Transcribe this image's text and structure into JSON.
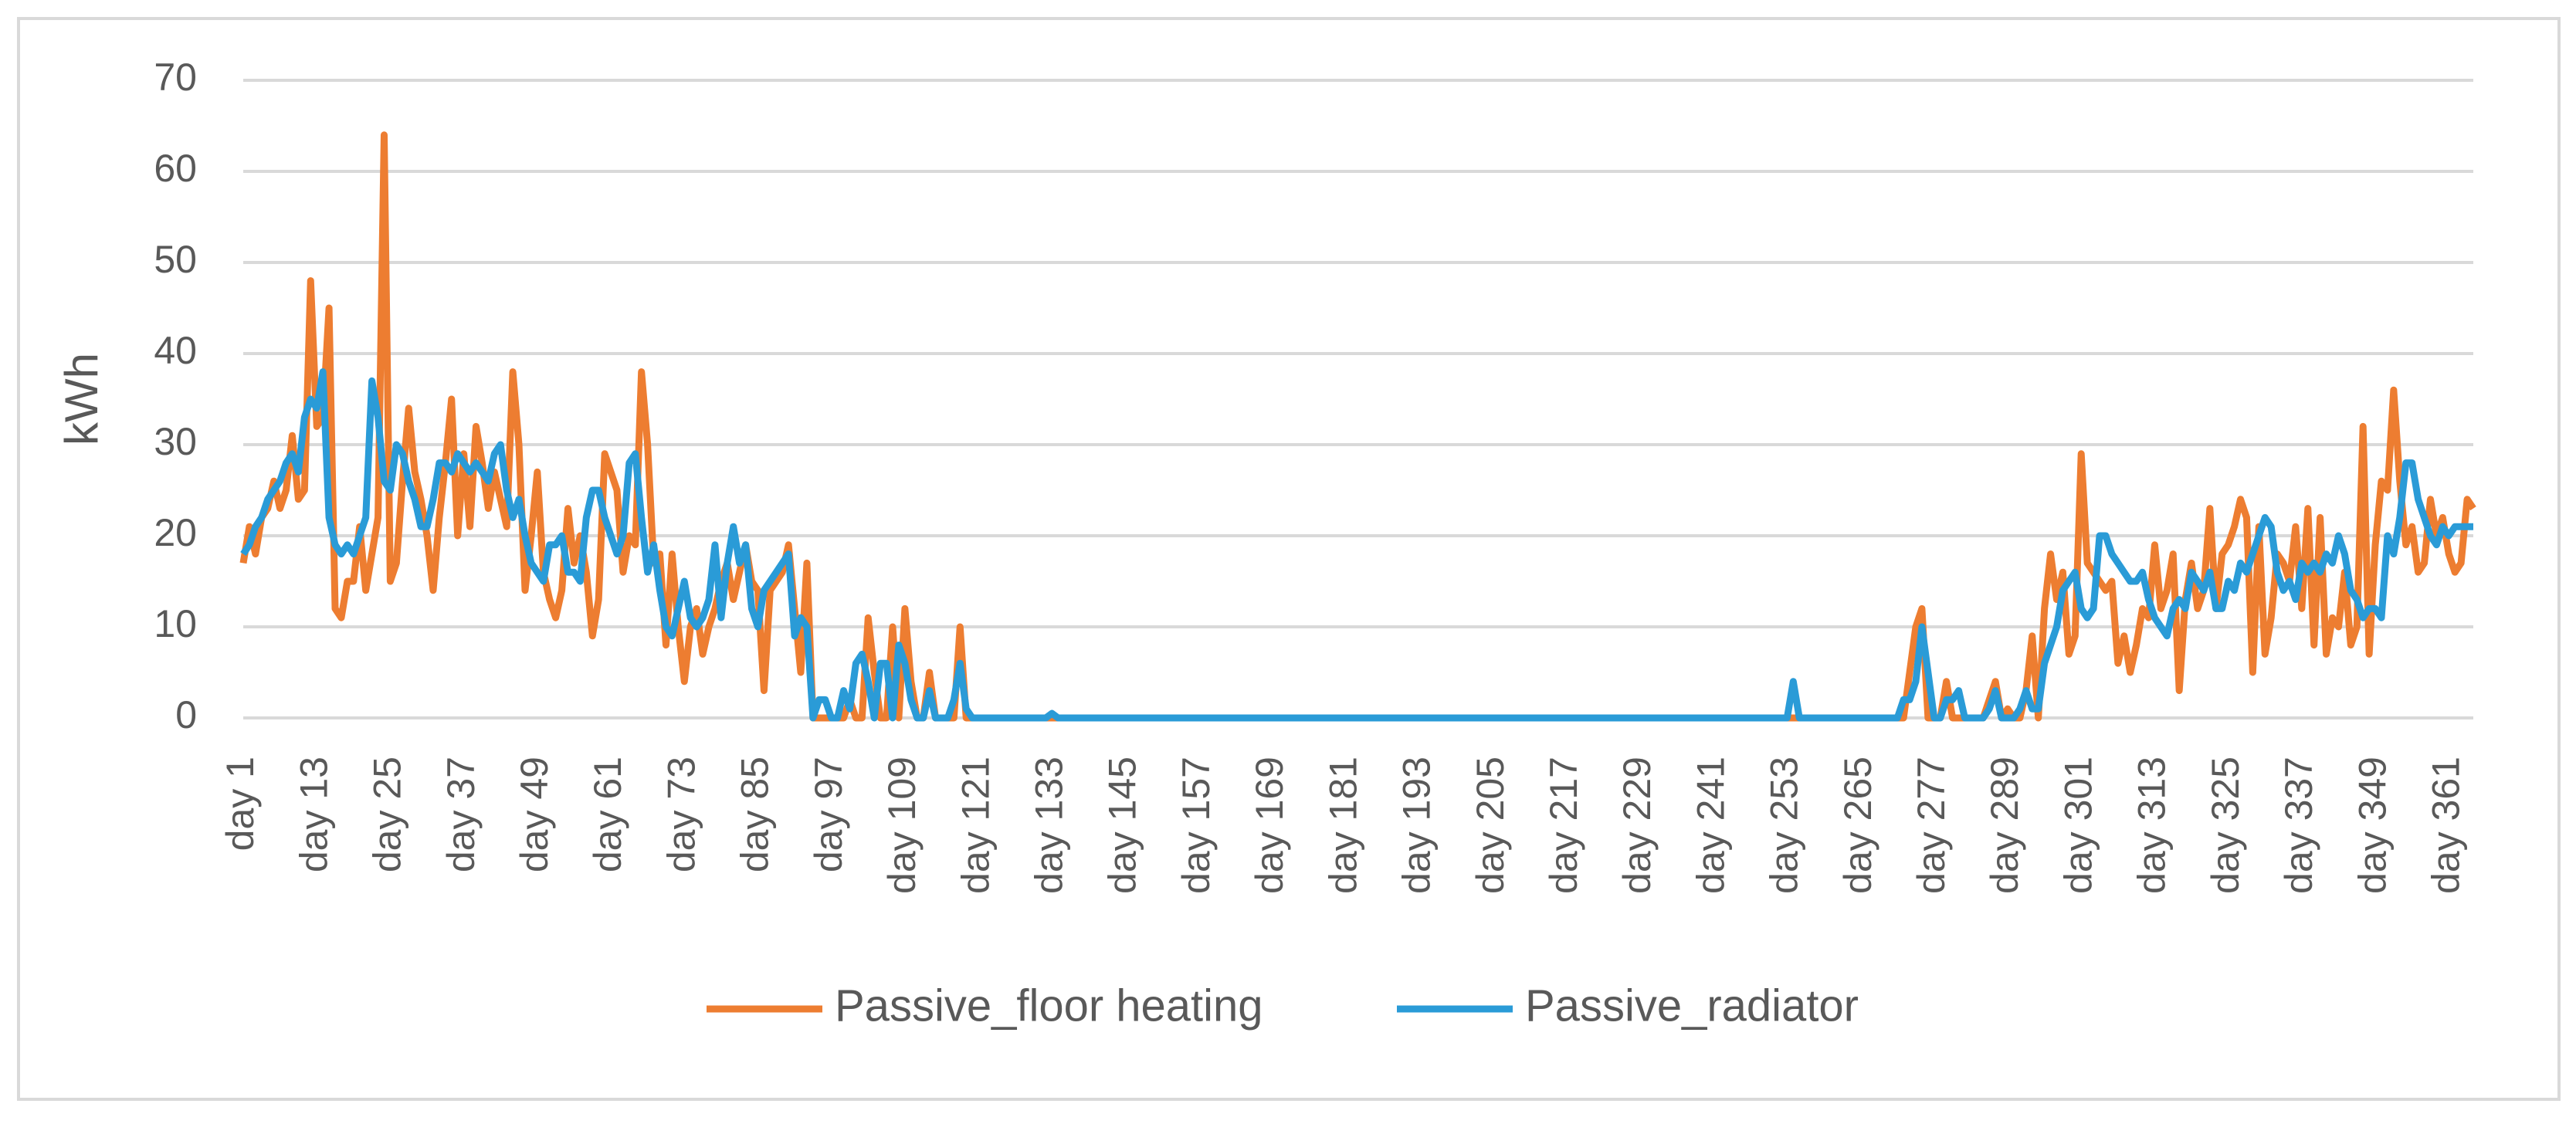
{
  "chart_data": {
    "type": "line",
    "y_label": "kWh",
    "categories": [
      "day 1",
      null,
      null,
      null,
      null,
      null,
      null,
      null,
      null,
      null,
      null,
      null,
      "day 13",
      null,
      null,
      null,
      null,
      null,
      null,
      null,
      null,
      null,
      null,
      null,
      "day 25",
      null,
      null,
      null,
      null,
      null,
      null,
      null,
      null,
      null,
      null,
      null,
      "day 37",
      null,
      null,
      null,
      null,
      null,
      null,
      null,
      null,
      null,
      null,
      null,
      "day 49",
      null,
      null,
      null,
      null,
      null,
      null,
      null,
      null,
      null,
      null,
      null,
      "day 61",
      null,
      null,
      null,
      null,
      null,
      null,
      null,
      null,
      null,
      null,
      null,
      "day 73",
      null,
      null,
      null,
      null,
      null,
      null,
      null,
      null,
      null,
      null,
      null,
      "day 85",
      null,
      null,
      null,
      null,
      null,
      null,
      null,
      null,
      null,
      null,
      null,
      "day 97",
      null,
      null,
      null,
      null,
      null,
      null,
      null,
      null,
      null,
      null,
      null,
      "day 109",
      null,
      null,
      null,
      null,
      null,
      null,
      null,
      null,
      null,
      null,
      null,
      "day 121",
      null,
      null,
      null,
      null,
      null,
      null,
      null,
      null,
      null,
      null,
      null,
      "day 133",
      null,
      null,
      null,
      null,
      null,
      null,
      null,
      null,
      null,
      null,
      null,
      "day 145",
      null,
      null,
      null,
      null,
      null,
      null,
      null,
      null,
      null,
      null,
      null,
      "day 157",
      null,
      null,
      null,
      null,
      null,
      null,
      null,
      null,
      null,
      null,
      null,
      "day 169",
      null,
      null,
      null,
      null,
      null,
      null,
      null,
      null,
      null,
      null,
      null,
      "day 181",
      null,
      null,
      null,
      null,
      null,
      null,
      null,
      null,
      null,
      null,
      null,
      "day 193",
      null,
      null,
      null,
      null,
      null,
      null,
      null,
      null,
      null,
      null,
      null,
      "day 205",
      null,
      null,
      null,
      null,
      null,
      null,
      null,
      null,
      null,
      null,
      null,
      "day 217",
      null,
      null,
      null,
      null,
      null,
      null,
      null,
      null,
      null,
      null,
      null,
      "day 229",
      null,
      null,
      null,
      null,
      null,
      null,
      null,
      null,
      null,
      null,
      null,
      "day 241",
      null,
      null,
      null,
      null,
      null,
      null,
      null,
      null,
      null,
      null,
      null,
      "day 253",
      null,
      null,
      null,
      null,
      null,
      null,
      null,
      null,
      null,
      null,
      null,
      "day 265",
      null,
      null,
      null,
      null,
      null,
      null,
      null,
      null,
      null,
      null,
      null,
      "day 277",
      null,
      null,
      null,
      null,
      null,
      null,
      null,
      null,
      null,
      null,
      null,
      "day 289",
      null,
      null,
      null,
      null,
      null,
      null,
      null,
      null,
      null,
      null,
      null,
      "day 301",
      null,
      null,
      null,
      null,
      null,
      null,
      null,
      null,
      null,
      null,
      null,
      "day 313",
      null,
      null,
      null,
      null,
      null,
      null,
      null,
      null,
      null,
      null,
      null,
      "day 325",
      null,
      null,
      null,
      null,
      null,
      null,
      null,
      null,
      null,
      null,
      null,
      "day 337",
      null,
      null,
      null,
      null,
      null,
      null,
      null,
      null,
      null,
      null,
      null,
      "day 349",
      null,
      null,
      null,
      null,
      null,
      null,
      null,
      null,
      null,
      null,
      null,
      "day 361",
      null,
      null,
      null,
      null
    ],
    "series": [
      {
        "name": "Passive_floor heating",
        "color": "#ed7d31",
        "values": [
          17,
          21,
          18,
          22,
          23,
          26,
          23,
          25,
          31,
          24,
          25,
          48,
          32,
          33,
          45,
          12,
          11,
          15,
          15,
          21,
          14,
          18,
          22,
          64,
          15,
          17,
          26,
          34,
          27,
          24,
          20,
          14,
          22,
          28,
          35,
          20,
          29,
          21,
          32,
          28,
          23,
          27,
          24,
          21,
          38,
          30,
          14,
          20,
          27,
          16,
          13,
          11,
          14,
          23,
          17,
          20,
          16,
          9,
          13,
          29,
          27,
          25,
          16,
          20,
          19,
          38,
          30,
          17,
          18,
          8,
          18,
          10,
          4,
          10,
          12,
          7,
          10,
          12,
          15,
          17,
          13,
          16,
          19,
          15,
          14,
          3,
          14,
          15,
          16,
          19,
          12,
          5,
          17,
          0,
          0,
          0,
          0,
          0,
          0,
          2,
          0,
          0,
          11,
          5,
          0,
          0,
          10,
          0,
          12,
          4,
          0,
          0,
          5,
          0,
          0,
          0,
          0,
          10,
          0,
          0,
          0,
          0,
          0,
          0,
          0,
          0,
          0,
          0,
          0,
          0,
          0,
          0,
          0,
          0,
          0,
          0,
          0,
          0,
          0,
          0,
          0,
          0,
          0,
          0,
          0,
          0,
          0,
          0,
          0,
          0,
          0,
          0,
          0,
          0,
          0,
          0,
          0,
          0,
          0,
          0,
          0,
          0,
          0,
          0,
          0,
          0,
          0,
          0,
          0,
          0,
          0,
          0,
          0,
          0,
          0,
          0,
          0,
          0,
          0,
          0,
          0,
          0,
          0,
          0,
          0,
          0,
          0,
          0,
          0,
          0,
          0,
          0,
          0,
          0,
          0,
          0,
          0,
          0,
          0,
          0,
          0,
          0,
          0,
          0,
          0,
          0,
          0,
          0,
          0,
          0,
          0,
          0,
          0,
          0,
          0,
          0,
          0,
          0,
          0,
          0,
          0,
          0,
          0,
          0,
          0,
          0,
          0,
          0,
          0,
          0,
          0,
          0,
          0,
          0,
          0,
          0,
          0,
          0,
          0,
          0,
          0,
          0,
          0,
          0,
          0,
          0,
          0,
          0,
          0,
          0,
          0,
          0,
          0,
          0,
          0,
          0,
          0,
          0,
          0,
          0,
          0,
          0,
          0,
          0,
          0,
          0,
          0,
          0,
          0,
          0,
          0,
          0,
          5,
          10,
          12,
          0,
          0,
          0,
          4,
          0,
          0,
          0,
          0,
          0,
          0,
          2,
          4,
          0,
          1,
          0,
          0,
          3,
          9,
          0,
          12,
          18,
          13,
          16,
          7,
          9,
          29,
          17,
          16,
          15,
          14,
          15,
          6,
          9,
          5,
          8,
          12,
          11,
          19,
          12,
          14,
          18,
          3,
          13,
          17,
          12,
          14,
          23,
          12,
          18,
          19,
          21,
          24,
          22,
          5,
          21,
          7,
          11,
          18,
          17,
          15,
          21,
          12,
          23,
          8,
          22,
          7,
          11,
          10,
          16,
          8,
          10,
          32,
          7,
          19,
          26,
          25,
          36,
          26,
          19,
          21,
          16,
          17,
          24,
          20,
          22,
          18,
          16,
          17,
          24,
          23
        ]
      },
      {
        "name": "Passive_radiator",
        "color": "#2a9bd7",
        "values": [
          18,
          19,
          21,
          22,
          24,
          25,
          26,
          28,
          29,
          27,
          33,
          35,
          34,
          38,
          22,
          19,
          18,
          19,
          18,
          20,
          22,
          37,
          33,
          26,
          25,
          30,
          29,
          26,
          24,
          21,
          21,
          24,
          28,
          28,
          27,
          29,
          28,
          27,
          28,
          27,
          26,
          29,
          30,
          25,
          22,
          24,
          20,
          17,
          16,
          15,
          19,
          19,
          20,
          16,
          16,
          15,
          22,
          25,
          25,
          22,
          20,
          18,
          20,
          28,
          29,
          22,
          16,
          19,
          14,
          10,
          9,
          12,
          15,
          11,
          10,
          11,
          13,
          19,
          11,
          17,
          21,
          17,
          19,
          12,
          10,
          14,
          15,
          16,
          17,
          18,
          9,
          11,
          10,
          0,
          2,
          2,
          0,
          0,
          3,
          1,
          6,
          7,
          4,
          0,
          6,
          6,
          0,
          8,
          6,
          2,
          0,
          0,
          3,
          0,
          0,
          0,
          2,
          6,
          1,
          0,
          0,
          0,
          0,
          0,
          0,
          0,
          0,
          0,
          0,
          0,
          0,
          0,
          0.5,
          0,
          0,
          0,
          0,
          0,
          0,
          0,
          0,
          0,
          0,
          0,
          0,
          0,
          0,
          0,
          0,
          0,
          0,
          0,
          0,
          0,
          0,
          0,
          0,
          0,
          0,
          0,
          0,
          0,
          0,
          0,
          0,
          0,
          0,
          0,
          0,
          0,
          0,
          0,
          0,
          0,
          0,
          0,
          0,
          0,
          0,
          0,
          0,
          0,
          0,
          0,
          0,
          0,
          0,
          0,
          0,
          0,
          0,
          0,
          0,
          0,
          0,
          0,
          0,
          0,
          0,
          0,
          0,
          0,
          0,
          0,
          0,
          0,
          0,
          0,
          0,
          0,
          0,
          0,
          0,
          0,
          0,
          0,
          0,
          0,
          0,
          0,
          0,
          0,
          0,
          0,
          0,
          0,
          0,
          0,
          0,
          0,
          0,
          0,
          0,
          0,
          0,
          0,
          0,
          0,
          0,
          0,
          0,
          0,
          0,
          0,
          0,
          0,
          0,
          0,
          0,
          0,
          0,
          0,
          0,
          4,
          0,
          0,
          0,
          0,
          0,
          0,
          0,
          0,
          0,
          0,
          0,
          0,
          0,
          0,
          0,
          0,
          0,
          2,
          2,
          4,
          10,
          5,
          0,
          0,
          2,
          2,
          3,
          0,
          0,
          0,
          0,
          1,
          3,
          0,
          0,
          0,
          1,
          3,
          1,
          1,
          6,
          8,
          10,
          14,
          15,
          16,
          12,
          11,
          12,
          20,
          20,
          18,
          17,
          16,
          15,
          15,
          16,
          13,
          11,
          10,
          9,
          12,
          13,
          12,
          16,
          15,
          14,
          16,
          12,
          12,
          15,
          14,
          17,
          16,
          18,
          20,
          22,
          21,
          16,
          14,
          15,
          13,
          17,
          16,
          17,
          16,
          18,
          17,
          20,
          18,
          14,
          13,
          11,
          12,
          12,
          11,
          20,
          18,
          22,
          28,
          28,
          24,
          22,
          20,
          19,
          21,
          20,
          21,
          21,
          21,
          21
        ]
      }
    ],
    "ylim": [
      0,
      70
    ],
    "yticks": [
      0,
      10,
      20,
      30,
      40,
      50,
      60,
      70
    ],
    "grid": true,
    "legend": "bottom"
  }
}
